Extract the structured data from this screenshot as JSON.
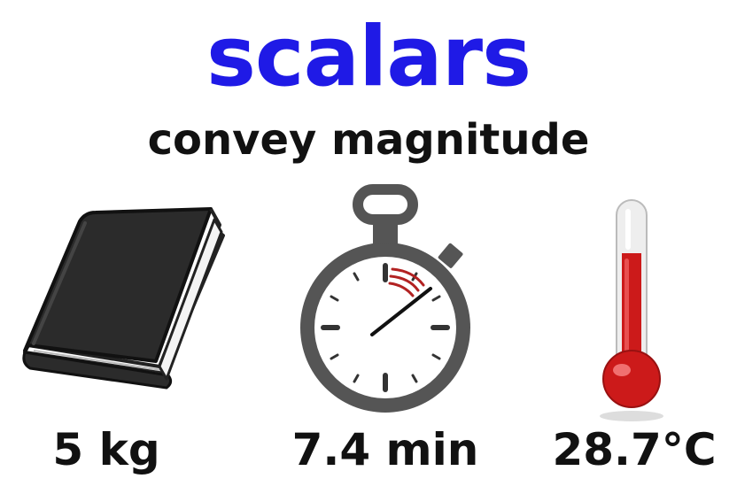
{
  "heading": {
    "title": "scalars",
    "subtitle": "convey magnitude",
    "title_color": "#1f1ae6",
    "subtitle_color": "#111111"
  },
  "items": [
    {
      "icon": "book-icon",
      "value": "5 kg"
    },
    {
      "icon": "stopwatch-icon",
      "value": "7.4 min"
    },
    {
      "icon": "thermometer-icon",
      "value": "28.7°C"
    }
  ],
  "colors": {
    "book": "#2b2b2b",
    "stopwatch_body": "#555555",
    "stopwatch_hand": "#111111",
    "stopwatch_motion": "#b22222",
    "thermometer_liquid": "#cc1a1a"
  }
}
